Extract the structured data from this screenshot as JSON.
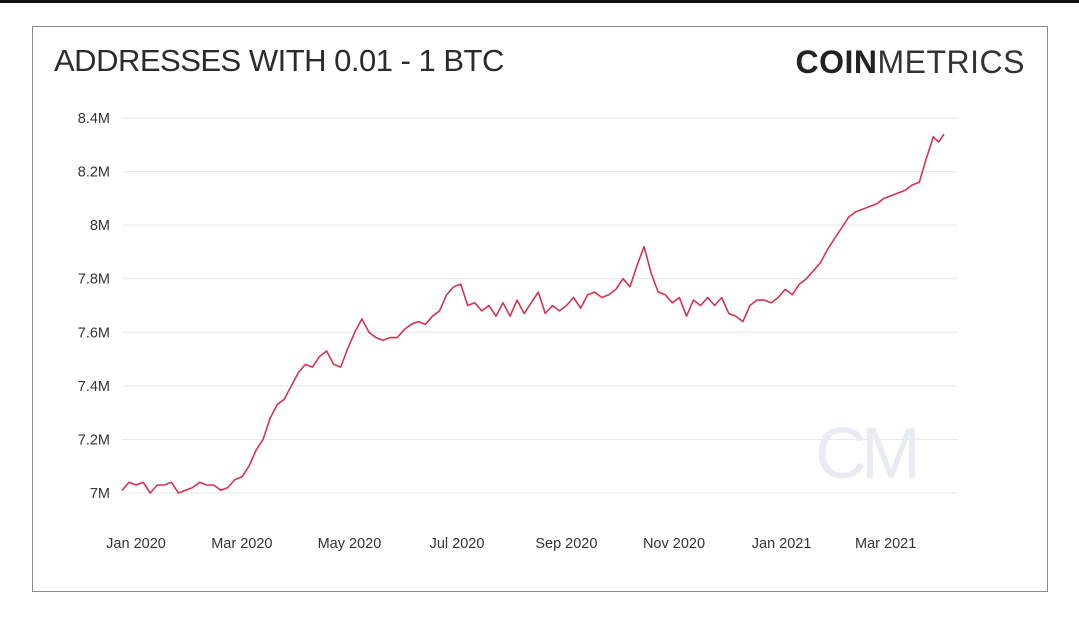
{
  "header": {
    "title": "ADDRESSES WITH 0.01 - 1 BTC",
    "logo_bold": "COIN",
    "logo_light": "METRICS",
    "watermark": "CM"
  },
  "colors": {
    "line": "#d4344f",
    "grid": "#e6e6e6",
    "watermark": "#e9ebf3"
  },
  "chart_data": {
    "type": "line",
    "title": "ADDRESSES WITH 0.01 - 1 BTC",
    "xlabel": "",
    "ylabel": "",
    "ylim": [
      7.0,
      8.4
    ],
    "y_ticks": [
      {
        "value": 8.4,
        "label": "8.4M"
      },
      {
        "value": 8.2,
        "label": "8.2M"
      },
      {
        "value": 8.0,
        "label": "8M"
      },
      {
        "value": 7.8,
        "label": "7.8M"
      },
      {
        "value": 7.6,
        "label": "7.6M"
      },
      {
        "value": 7.4,
        "label": "7.4M"
      },
      {
        "value": 7.2,
        "label": "7.2M"
      },
      {
        "value": 7.0,
        "label": "7M"
      }
    ],
    "x_ticks": [
      {
        "date": "2020-01-01",
        "label": "Jan 2020"
      },
      {
        "date": "2020-03-01",
        "label": "Mar 2020"
      },
      {
        "date": "2020-05-01",
        "label": "May 2020"
      },
      {
        "date": "2020-07-01",
        "label": "Jul 2020"
      },
      {
        "date": "2020-09-01",
        "label": "Sep 2020"
      },
      {
        "date": "2020-11-01",
        "label": "Nov 2020"
      },
      {
        "date": "2021-01-01",
        "label": "Jan 2021"
      },
      {
        "date": "2021-03-01",
        "label": "Mar 2021"
      }
    ],
    "grid": true,
    "legend": "none",
    "series": [
      {
        "unit": "M",
        "points": [
          [
            "2020-01-01",
            7.01
          ],
          [
            "2020-01-05",
            7.04
          ],
          [
            "2020-01-09",
            7.03
          ],
          [
            "2020-01-13",
            7.04
          ],
          [
            "2020-01-17",
            7.0
          ],
          [
            "2020-01-21",
            7.03
          ],
          [
            "2020-01-25",
            7.03
          ],
          [
            "2020-01-29",
            7.04
          ],
          [
            "2020-02-02",
            7.0
          ],
          [
            "2020-02-06",
            7.01
          ],
          [
            "2020-02-10",
            7.02
          ],
          [
            "2020-02-14",
            7.04
          ],
          [
            "2020-02-18",
            7.03
          ],
          [
            "2020-02-22",
            7.03
          ],
          [
            "2020-02-26",
            7.01
          ],
          [
            "2020-03-01",
            7.02
          ],
          [
            "2020-03-05",
            7.05
          ],
          [
            "2020-03-09",
            7.06
          ],
          [
            "2020-03-13",
            7.1
          ],
          [
            "2020-03-17",
            7.16
          ],
          [
            "2020-03-21",
            7.2
          ],
          [
            "2020-03-25",
            7.28
          ],
          [
            "2020-03-29",
            7.33
          ],
          [
            "2020-04-02",
            7.35
          ],
          [
            "2020-04-06",
            7.4
          ],
          [
            "2020-04-10",
            7.45
          ],
          [
            "2020-04-14",
            7.48
          ],
          [
            "2020-04-18",
            7.47
          ],
          [
            "2020-04-22",
            7.51
          ],
          [
            "2020-04-26",
            7.53
          ],
          [
            "2020-04-30",
            7.48
          ],
          [
            "2020-05-04",
            7.47
          ],
          [
            "2020-05-08",
            7.54
          ],
          [
            "2020-05-12",
            7.6
          ],
          [
            "2020-05-16",
            7.65
          ],
          [
            "2020-05-20",
            7.6
          ],
          [
            "2020-05-24",
            7.58
          ],
          [
            "2020-05-28",
            7.57
          ],
          [
            "2020-06-01",
            7.58
          ],
          [
            "2020-06-05",
            7.58
          ],
          [
            "2020-06-09",
            7.61
          ],
          [
            "2020-06-13",
            7.63
          ],
          [
            "2020-06-17",
            7.64
          ],
          [
            "2020-06-21",
            7.63
          ],
          [
            "2020-06-25",
            7.66
          ],
          [
            "2020-06-29",
            7.68
          ],
          [
            "2020-07-03",
            7.74
          ],
          [
            "2020-07-07",
            7.77
          ],
          [
            "2020-07-11",
            7.78
          ],
          [
            "2020-07-15",
            7.7
          ],
          [
            "2020-07-19",
            7.71
          ],
          [
            "2020-07-23",
            7.68
          ],
          [
            "2020-07-27",
            7.7
          ],
          [
            "2020-07-31",
            7.66
          ],
          [
            "2020-08-04",
            7.71
          ],
          [
            "2020-08-08",
            7.66
          ],
          [
            "2020-08-12",
            7.72
          ],
          [
            "2020-08-16",
            7.67
          ],
          [
            "2020-08-20",
            7.71
          ],
          [
            "2020-08-24",
            7.75
          ],
          [
            "2020-08-28",
            7.67
          ],
          [
            "2020-09-01",
            7.7
          ],
          [
            "2020-09-05",
            7.68
          ],
          [
            "2020-09-09",
            7.7
          ],
          [
            "2020-09-13",
            7.73
          ],
          [
            "2020-09-17",
            7.69
          ],
          [
            "2020-09-21",
            7.74
          ],
          [
            "2020-09-25",
            7.75
          ],
          [
            "2020-09-29",
            7.73
          ],
          [
            "2020-10-03",
            7.74
          ],
          [
            "2020-10-07",
            7.76
          ],
          [
            "2020-10-11",
            7.8
          ],
          [
            "2020-10-15",
            7.77
          ],
          [
            "2020-10-19",
            7.85
          ],
          [
            "2020-10-23",
            7.92
          ],
          [
            "2020-10-27",
            7.82
          ],
          [
            "2020-10-31",
            7.75
          ],
          [
            "2020-11-04",
            7.74
          ],
          [
            "2020-11-08",
            7.71
          ],
          [
            "2020-11-12",
            7.73
          ],
          [
            "2020-11-16",
            7.66
          ],
          [
            "2020-11-20",
            7.72
          ],
          [
            "2020-11-24",
            7.7
          ],
          [
            "2020-11-28",
            7.73
          ],
          [
            "2020-12-02",
            7.7
          ],
          [
            "2020-12-06",
            7.73
          ],
          [
            "2020-12-10",
            7.67
          ],
          [
            "2020-12-14",
            7.66
          ],
          [
            "2020-12-18",
            7.64
          ],
          [
            "2020-12-22",
            7.7
          ],
          [
            "2020-12-26",
            7.72
          ],
          [
            "2020-12-30",
            7.72
          ],
          [
            "2021-01-03",
            7.71
          ],
          [
            "2021-01-07",
            7.73
          ],
          [
            "2021-01-11",
            7.76
          ],
          [
            "2021-01-15",
            7.74
          ],
          [
            "2021-01-19",
            7.78
          ],
          [
            "2021-01-23",
            7.8
          ],
          [
            "2021-01-27",
            7.83
          ],
          [
            "2021-01-31",
            7.86
          ],
          [
            "2021-02-04",
            7.91
          ],
          [
            "2021-02-08",
            7.95
          ],
          [
            "2021-02-12",
            7.99
          ],
          [
            "2021-02-16",
            8.03
          ],
          [
            "2021-02-20",
            8.05
          ],
          [
            "2021-02-24",
            8.06
          ],
          [
            "2021-02-28",
            8.07
          ],
          [
            "2021-03-04",
            8.08
          ],
          [
            "2021-03-08",
            8.1
          ],
          [
            "2021-03-12",
            8.11
          ],
          [
            "2021-03-16",
            8.12
          ],
          [
            "2021-03-20",
            8.13
          ],
          [
            "2021-03-24",
            8.15
          ],
          [
            "2021-03-28",
            8.16
          ],
          [
            "2021-04-01",
            8.25
          ],
          [
            "2021-04-05",
            8.33
          ],
          [
            "2021-04-08",
            8.31
          ],
          [
            "2021-04-11",
            8.34
          ]
        ]
      }
    ]
  }
}
